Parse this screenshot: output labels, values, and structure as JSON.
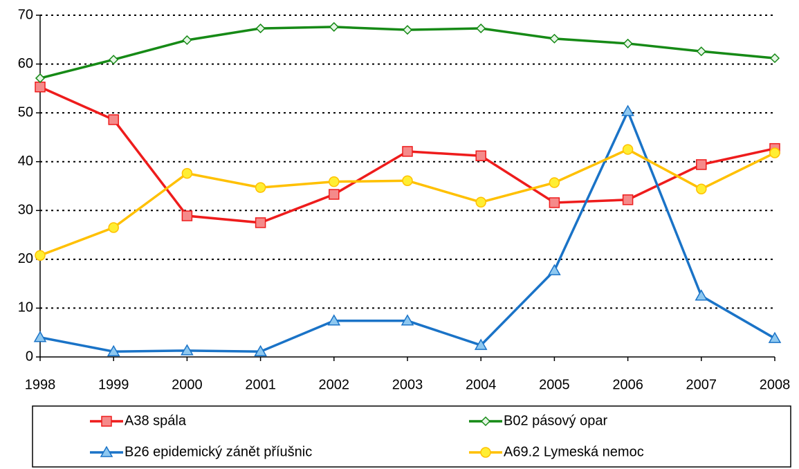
{
  "chart_data": {
    "type": "line",
    "categories": [
      "1998",
      "1999",
      "2000",
      "2001",
      "2002",
      "2003",
      "2004",
      "2005",
      "2006",
      "2007",
      "2008"
    ],
    "series": [
      {
        "name": "A38 spála",
        "color": "#ee1c1c",
        "marker": "square",
        "marker_fill": "#f58a8a",
        "values": [
          55.3,
          48.6,
          28.9,
          27.5,
          33.3,
          42.1,
          41.2,
          31.6,
          32.2,
          39.4,
          42.7
        ]
      },
      {
        "name": "B02 pásový opar",
        "color": "#168a16",
        "marker": "diamond",
        "marker_fill": "#e6f5e6",
        "values": [
          57.1,
          60.9,
          64.9,
          67.3,
          67.6,
          67.0,
          67.3,
          65.2,
          64.2,
          62.6,
          61.2
        ]
      },
      {
        "name": "B26 epidemický zánět příušnic",
        "color": "#1a73c7",
        "marker": "triangle",
        "marker_fill": "#8ec8f0",
        "values": [
          4.0,
          1.1,
          1.3,
          1.1,
          7.4,
          7.4,
          2.4,
          17.7,
          50.3,
          12.5,
          3.8
        ]
      },
      {
        "name": "A69.2 Lymeská nemoc",
        "color": "#ffc000",
        "marker": "circle",
        "marker_fill": "#ffee33",
        "values": [
          20.8,
          26.5,
          37.6,
          34.7,
          35.9,
          36.1,
          31.7,
          35.7,
          42.5,
          34.4,
          41.8
        ]
      }
    ],
    "ylim": [
      0,
      70
    ],
    "yticks": [
      0,
      10,
      20,
      30,
      40,
      50,
      60,
      70
    ],
    "grid": true,
    "legend": "bottom"
  }
}
